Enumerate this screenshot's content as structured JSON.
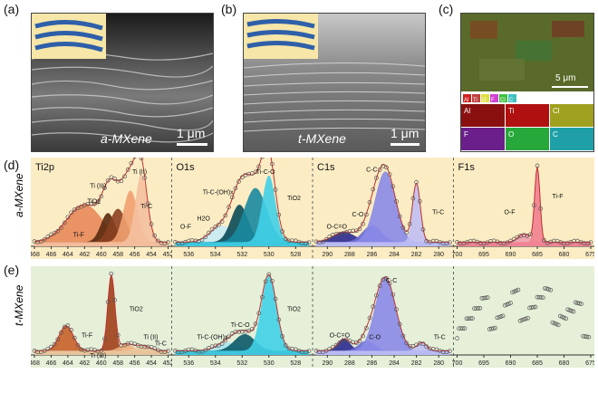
{
  "panels": {
    "a": {
      "label": "(a)",
      "caption": "a-MXene",
      "scale": "1 μm"
    },
    "b": {
      "label": "(b)",
      "caption": "t-MXene",
      "scale": "1 μm"
    },
    "c": {
      "label": "(c)",
      "scale": "5 μm",
      "elements": [
        "Al",
        "Ti",
        "O",
        "F",
        "Cl",
        "C"
      ],
      "maps": [
        {
          "name": "Al",
          "color": "#8a1010"
        },
        {
          "name": "Ti",
          "color": "#b01010"
        },
        {
          "name": "Cl",
          "color": "#a0a020"
        },
        {
          "name": "F",
          "color": "#6a1f8a"
        },
        {
          "name": "O",
          "color": "#27a83a"
        },
        {
          "name": "C",
          "color": "#1fa0a8"
        }
      ]
    },
    "d": {
      "label": "(d)",
      "row": "a-MXene"
    },
    "e": {
      "label": "(e)",
      "row": "t-MXene"
    }
  },
  "chart_data": [
    {
      "type": "line",
      "id": "d-ti2p",
      "title": "Ti2p",
      "xlim": [
        468,
        452
      ],
      "ticks": [
        "468",
        "466",
        "464",
        "462",
        "460",
        "458",
        "456",
        "454",
        "452"
      ],
      "annotations": [
        "Ti (III)",
        "TiO2",
        "Ti (II)",
        "Ti-C",
        "Ti-F"
      ]
    },
    {
      "type": "line",
      "id": "d-o1s",
      "title": "O1s",
      "xlim": [
        537,
        527
      ],
      "ticks": [
        "536",
        "534",
        "532",
        "530",
        "528"
      ],
      "annotations": [
        "Ti-C-O",
        "Ti-C-(OH)x",
        "H2O",
        "O-F",
        "TiO2"
      ]
    },
    {
      "type": "line",
      "id": "d-c1s",
      "title": "C1s",
      "xlim": [
        291,
        279
      ],
      "ticks": [
        "290",
        "288",
        "286",
        "284",
        "282",
        "280"
      ],
      "annotations": [
        "C-C",
        "C-O",
        "O-C=O",
        "Ti-C"
      ]
    },
    {
      "type": "line",
      "id": "d-f1s",
      "title": "F1s",
      "xlim": [
        700,
        675
      ],
      "ticks": [
        "700",
        "695",
        "690",
        "685",
        "680",
        "675"
      ],
      "annotations": [
        "O-F",
        "Ti-F"
      ]
    },
    {
      "type": "line",
      "id": "e-ti2p",
      "xlim": [
        468,
        452
      ],
      "ticks": [
        "468",
        "466",
        "464",
        "462",
        "460",
        "458",
        "456",
        "454",
        "452"
      ],
      "annotations": [
        "Ti-F",
        "TiO2",
        "Ti (II)",
        "Ti-C",
        "Ti (III)"
      ]
    },
    {
      "type": "line",
      "id": "e-o1s",
      "xlim": [
        537,
        527
      ],
      "ticks": [
        "536",
        "534",
        "532",
        "530",
        "528"
      ],
      "annotations": [
        "Ti-C-O",
        "Ti-C-(OH)x",
        "TiO2"
      ]
    },
    {
      "type": "line",
      "id": "e-c1s",
      "xlim": [
        291,
        279
      ],
      "ticks": [
        "290",
        "288",
        "286",
        "284",
        "282",
        "280"
      ],
      "annotations": [
        "C-C",
        "O-C=O",
        "C-O",
        "Ti-C"
      ]
    },
    {
      "type": "scatter",
      "id": "e-f1s",
      "xlim": [
        700,
        675
      ],
      "ticks": [
        "700",
        "695",
        "690",
        "685",
        "680",
        "675"
      ],
      "annotations": []
    }
  ]
}
